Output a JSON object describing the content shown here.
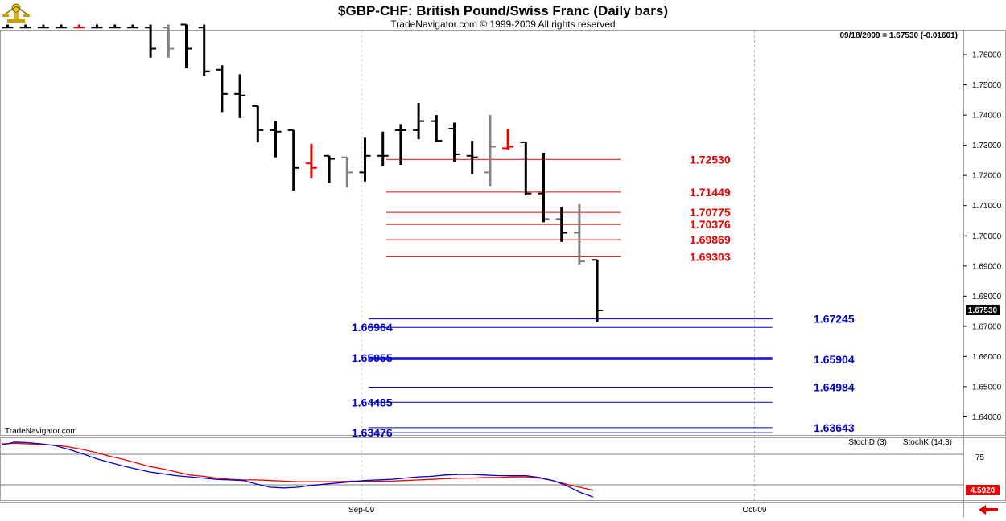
{
  "header": {
    "title": "$GBP-CHF:  British Pound/Swiss Franc  (Daily bars)",
    "subtitle": "TradeNavigator.com © 1999-2009 All rights reserved",
    "readout": "09/18/2009 = 1.67530 (-0.01601)",
    "watermark": "TradeNavigator.com",
    "last_price": "1.67530",
    "stoch_last": "4.5920",
    "stoch_ref": "75"
  },
  "colors": {
    "up": "#000000",
    "neutral": "#808080",
    "down": "#ee0000",
    "resistance": "#ee0000",
    "support": "#0000cc",
    "stoch_d": "#ee0000",
    "stoch_k": "#0000cc"
  },
  "chart_data": {
    "type": "ohlc",
    "title": "$GBP-CHF:  British Pound/Swiss Franc  (Daily bars)",
    "y_ticks": [
      "1.76000",
      "1.75000",
      "1.74000",
      "1.73000",
      "1.72000",
      "1.71000",
      "1.70000",
      "1.69000",
      "1.68000",
      "1.67000",
      "1.66000",
      "1.65000",
      "1.64000"
    ],
    "ylim": [
      1.634,
      1.768
    ],
    "x_ticks": [
      {
        "label": "Sep-09",
        "index": 19.8
      },
      {
        "label": "Oct-09",
        "index": 41.8
      }
    ],
    "bars": [
      {
        "o": 1.769,
        "h": 1.77,
        "l": 1.769,
        "c": 1.769,
        "col": "up"
      },
      {
        "o": 1.769,
        "h": 1.77,
        "l": 1.769,
        "c": 1.769,
        "col": "up"
      },
      {
        "o": 1.769,
        "h": 1.77,
        "l": 1.769,
        "c": 1.769,
        "col": "up"
      },
      {
        "o": 1.769,
        "h": 1.77,
        "l": 1.769,
        "c": 1.769,
        "col": "up"
      },
      {
        "o": 1.769,
        "h": 1.77,
        "l": 1.769,
        "c": 1.769,
        "col": "down"
      },
      {
        "o": 1.769,
        "h": 1.77,
        "l": 1.769,
        "c": 1.769,
        "col": "up"
      },
      {
        "o": 1.769,
        "h": 1.77,
        "l": 1.769,
        "c": 1.769,
        "col": "up"
      },
      {
        "o": 1.769,
        "h": 1.77,
        "l": 1.769,
        "c": 1.769,
        "col": "up"
      },
      {
        "o": 1.769,
        "h": 1.77,
        "l": 1.759,
        "c": 1.762,
        "col": "up"
      },
      {
        "o": 1.769,
        "h": 1.77,
        "l": 1.759,
        "c": 1.762,
        "col": "neutral"
      },
      {
        "o": 1.77,
        "h": 1.77,
        "l": 1.7555,
        "c": 1.762,
        "col": "up"
      },
      {
        "o": 1.769,
        "h": 1.77,
        "l": 1.753,
        "c": 1.7545,
        "col": "up"
      },
      {
        "o": 1.755,
        "h": 1.7565,
        "l": 1.741,
        "c": 1.747,
        "col": "up"
      },
      {
        "o": 1.747,
        "h": 1.7535,
        "l": 1.739,
        "c": 1.7465,
        "col": "up"
      },
      {
        "o": 1.743,
        "h": 1.743,
        "l": 1.731,
        "c": 1.735,
        "col": "up"
      },
      {
        "o": 1.735,
        "h": 1.738,
        "l": 1.726,
        "c": 1.7345,
        "col": "up"
      },
      {
        "o": 1.735,
        "h": 1.735,
        "l": 1.715,
        "c": 1.7225,
        "col": "up"
      },
      {
        "o": 1.724,
        "h": 1.7305,
        "l": 1.719,
        "c": 1.7225,
        "col": "down"
      },
      {
        "o": 1.7265,
        "h": 1.7265,
        "l": 1.7175,
        "c": 1.7255,
        "col": "up"
      },
      {
        "o": 1.726,
        "h": 1.726,
        "l": 1.716,
        "c": 1.721,
        "col": "neutral"
      },
      {
        "o": 1.721,
        "h": 1.7325,
        "l": 1.718,
        "c": 1.7265,
        "col": "up"
      },
      {
        "o": 1.7265,
        "h": 1.7345,
        "l": 1.723,
        "c": 1.7265,
        "col": "up"
      },
      {
        "o": 1.735,
        "h": 1.737,
        "l": 1.7235,
        "c": 1.735,
        "col": "up"
      },
      {
        "o": 1.735,
        "h": 1.744,
        "l": 1.732,
        "c": 1.738,
        "col": "up"
      },
      {
        "o": 1.738,
        "h": 1.74,
        "l": 1.731,
        "c": 1.7315,
        "col": "up"
      },
      {
        "o": 1.7355,
        "h": 1.7375,
        "l": 1.7245,
        "c": 1.727,
        "col": "up"
      },
      {
        "o": 1.7265,
        "h": 1.7315,
        "l": 1.7205,
        "c": 1.726,
        "col": "up"
      },
      {
        "o": 1.721,
        "h": 1.74,
        "l": 1.7165,
        "c": 1.7295,
        "col": "neutral"
      },
      {
        "o": 1.729,
        "h": 1.7355,
        "l": 1.7285,
        "c": 1.7295,
        "col": "down"
      },
      {
        "o": 1.731,
        "h": 1.731,
        "l": 1.7135,
        "c": 1.714,
        "col": "up"
      },
      {
        "o": 1.714,
        "h": 1.7275,
        "l": 1.7045,
        "c": 1.7055,
        "col": "up"
      },
      {
        "o": 1.7055,
        "h": 1.7095,
        "l": 1.698,
        "c": 1.701,
        "col": "up"
      },
      {
        "o": 1.701,
        "h": 1.7105,
        "l": 1.6905,
        "c": 1.6915,
        "col": "neutral"
      },
      {
        "o": 1.692,
        "h": 1.692,
        "l": 1.6715,
        "c": 1.6753,
        "col": "up"
      }
    ],
    "levels": [
      {
        "value": 1.7253,
        "label": "1.72530",
        "color": "resistance",
        "x1": 21.2,
        "x2": 34.3,
        "label_side": "right"
      },
      {
        "value": 1.71449,
        "label": "1.71449",
        "color": "resistance",
        "x1": 21.2,
        "x2": 34.3,
        "label_side": "right"
      },
      {
        "value": 1.70775,
        "label": "1.70775",
        "color": "resistance",
        "x1": 21.2,
        "x2": 34.3,
        "label_side": "right"
      },
      {
        "value": 1.70376,
        "label": "1.70376",
        "color": "resistance",
        "x1": 21.2,
        "x2": 34.3,
        "label_side": "right"
      },
      {
        "value": 1.69869,
        "label": "1.69869",
        "color": "resistance",
        "x1": 21.2,
        "x2": 34.3,
        "label_side": "right"
      },
      {
        "value": 1.69303,
        "label": "1.69303",
        "color": "resistance",
        "x1": 21.2,
        "x2": 34.3,
        "label_side": "right"
      },
      {
        "value": 1.67245,
        "label": "1.67245",
        "color": "support",
        "x1": 20.2,
        "x2": 42.8,
        "label_side": "right"
      },
      {
        "value": 1.66964,
        "label": "1.66964",
        "color": "support",
        "x1": 20.2,
        "x2": 42.8,
        "label_side": "left"
      },
      {
        "value": 1.65955,
        "label": "1.65955",
        "color": "support",
        "x1": 20.2,
        "x2": 42.8,
        "label_side": "left"
      },
      {
        "value": 1.65904,
        "label": "1.65904",
        "color": "support",
        "x1": 20.2,
        "x2": 42.8,
        "label_side": "right"
      },
      {
        "value": 1.64984,
        "label": "1.64984",
        "color": "support",
        "x1": 20.2,
        "x2": 42.8,
        "label_side": "right"
      },
      {
        "value": 1.64485,
        "label": "1.64485",
        "color": "support",
        "x1": 20.2,
        "x2": 42.8,
        "label_side": "left"
      },
      {
        "value": 1.63643,
        "label": "1.63643",
        "color": "support",
        "x1": 20.2,
        "x2": 42.8,
        "label_side": "right"
      },
      {
        "value": 1.63476,
        "label": "1.63476",
        "color": "support",
        "x1": 20.2,
        "x2": 42.8,
        "label_side": "left"
      }
    ],
    "stochastic": {
      "ylim": [
        0,
        100
      ],
      "ref_levels": [
        75,
        25
      ],
      "legend": [
        {
          "name": "StochD (3)",
          "color": "stoch_d"
        },
        {
          "name": "StochK (14,3)",
          "color": "stoch_k"
        }
      ],
      "d": [
        92,
        93,
        92,
        91,
        90,
        87,
        83,
        78,
        72,
        67,
        61,
        55,
        51,
        46,
        41,
        39,
        36,
        34,
        33,
        33,
        32,
        31,
        30,
        30,
        30,
        30,
        31,
        31,
        31,
        31,
        32,
        33,
        34,
        35,
        36,
        36,
        37,
        37,
        38,
        38,
        36,
        32,
        26,
        21,
        16
      ],
      "k": [
        90,
        95,
        94,
        92,
        89,
        83,
        76,
        68,
        62,
        56,
        51,
        46,
        43,
        40,
        38,
        36,
        34,
        33,
        32,
        26,
        21,
        20,
        21,
        24,
        26,
        28,
        30,
        32,
        33,
        34,
        36,
        38,
        39,
        41,
        42,
        42,
        41,
        40,
        40,
        40,
        37,
        32,
        24,
        13,
        5
      ]
    }
  }
}
